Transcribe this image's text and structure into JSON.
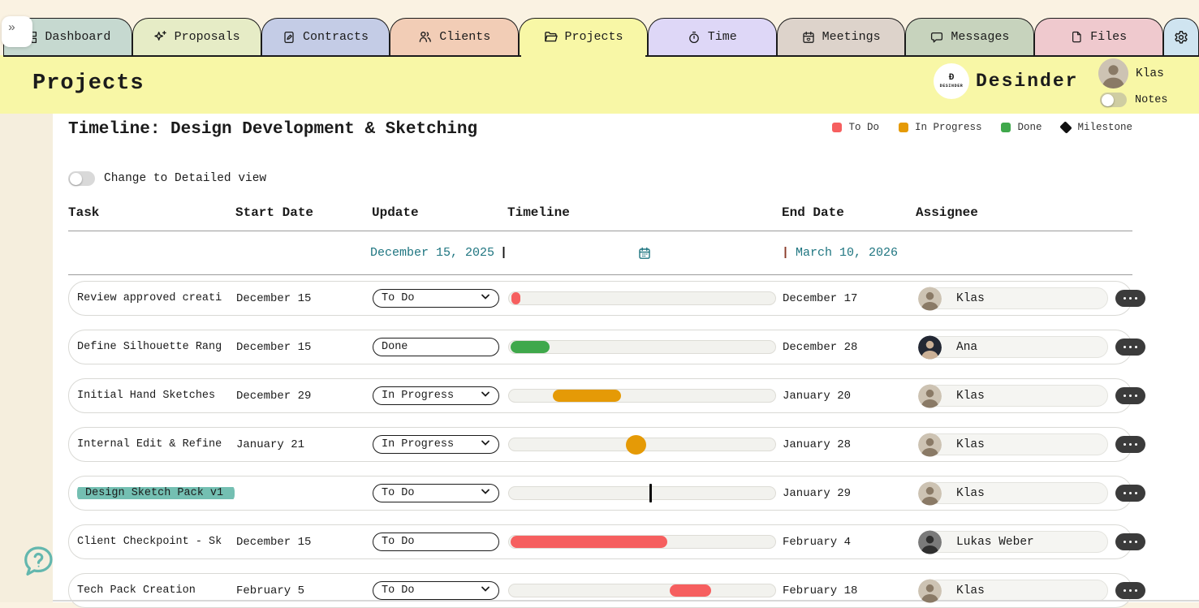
{
  "page": {
    "collapse_button": "»"
  },
  "tabs": [
    {
      "label": "Dashboard",
      "icon": "grid",
      "color": "#c6d9d0",
      "active": false
    },
    {
      "label": "Proposals",
      "icon": "sparkle",
      "color": "#e6ecc6",
      "active": false
    },
    {
      "label": "Contracts",
      "icon": "contract",
      "color": "#c4cce6",
      "active": false
    },
    {
      "label": "Clients",
      "icon": "people",
      "color": "#f2cdb6",
      "active": false
    },
    {
      "label": "Projects",
      "icon": "folder",
      "color": "#f8f7a6",
      "active": true
    },
    {
      "label": "Time",
      "icon": "timer",
      "color": "#ded7f7",
      "active": false
    },
    {
      "label": "Meetings",
      "icon": "calendar",
      "color": "#ddd3cb",
      "active": false
    },
    {
      "label": "Messages",
      "icon": "chat",
      "color": "#c7d3bd",
      "active": false
    },
    {
      "label": "Files",
      "icon": "file",
      "color": "#efc9ce",
      "active": false
    }
  ],
  "settings_tab": {
    "icon": "gear",
    "color": "#cfe4f0"
  },
  "header": {
    "title": "Projects",
    "brand": "Desinder",
    "logo_mark": "Ð",
    "logo_text": "DESINDER",
    "user": "Klas",
    "avatar": {
      "bg": "#cdc3b3",
      "fg": "#8a7a66"
    },
    "notes_toggle_label": "Notes",
    "notes_toggle_on": false
  },
  "timeline": {
    "title": "Timeline: Design Development & Sketching",
    "legend": [
      {
        "label": "To Do",
        "color": "#f65f5f",
        "shape": "square"
      },
      {
        "label": "In Progress",
        "color": "#e59a06",
        "shape": "square"
      },
      {
        "label": "Done",
        "color": "#3fa84b",
        "shape": "square"
      },
      {
        "label": "Milestone",
        "color": "#101010",
        "shape": "diamond"
      }
    ],
    "view_toggle": {
      "label": "Change to Detailed view",
      "on": false
    },
    "columns": [
      "Task",
      "Start Date",
      "Update",
      "Timeline",
      "End Date",
      "Assignee"
    ],
    "date_range": {
      "start": "December 15, 2025",
      "start_cursor": "|",
      "end_cursor": "|",
      "end": "March 10, 2026"
    },
    "rows": [
      {
        "task": "Review approved creati",
        "start": "December 15",
        "status": "To Do",
        "has_chevron": true,
        "highlight": false,
        "bar": {
          "kind": "bar",
          "color": "#f65f5f",
          "left_pct": 1,
          "width_pct": 3.2
        },
        "end": "December 17",
        "assignee": "Klas",
        "avatar": {
          "bg": "#cdc3b3",
          "fg": "#8a7a66"
        }
      },
      {
        "task": "Define Silhouette Rang",
        "start": "December 15",
        "status": "Done",
        "has_chevron": false,
        "highlight": false,
        "bar": {
          "kind": "bar",
          "color": "#3fa84b",
          "left_pct": 0.6,
          "width_pct": 14.5
        },
        "end": "December 28",
        "assignee": "Ana",
        "avatar": {
          "bg": "#232834",
          "fg": "#cbb096"
        }
      },
      {
        "task": "Initial Hand Sketches",
        "start": "December 29",
        "status": "In Progress",
        "has_chevron": true,
        "highlight": false,
        "bar": {
          "kind": "bar",
          "color": "#e59a06",
          "left_pct": 16.5,
          "width_pct": 25.5
        },
        "end": "January 20",
        "assignee": "Klas",
        "avatar": {
          "bg": "#cdc3b3",
          "fg": "#8a7a66"
        }
      },
      {
        "task": "Internal Edit & Refine",
        "start": "January 21",
        "status": "In Progress",
        "has_chevron": true,
        "highlight": false,
        "bar": {
          "kind": "dot",
          "color": "#e59a06",
          "left_pct": 44,
          "width_pct": 0
        },
        "end": "January 28",
        "assignee": "Klas",
        "avatar": {
          "bg": "#cdc3b3",
          "fg": "#8a7a66"
        }
      },
      {
        "task": "Design Sketch Pack v1",
        "start": "",
        "status": "To Do",
        "has_chevron": true,
        "highlight": true,
        "bar": {
          "kind": "marker",
          "color": "#0c0c0c",
          "left_pct": 52.8,
          "width_pct": 0
        },
        "end": "January 29",
        "assignee": "Klas",
        "avatar": {
          "bg": "#cdc3b3",
          "fg": "#8a7a66"
        }
      },
      {
        "task": "Client Checkpoint - Sk",
        "start": "December 15",
        "status": "To Do",
        "has_chevron": false,
        "highlight": false,
        "bar": {
          "kind": "bar",
          "color": "#f65f5f",
          "left_pct": 0.5,
          "width_pct": 59
        },
        "end": "February 4",
        "assignee": "Lukas Weber",
        "avatar": {
          "bg": "#7a7a7a",
          "fg": "#2f2f2f"
        }
      },
      {
        "task": "Tech Pack Creation",
        "start": "February 5",
        "status": "To Do",
        "has_chevron": true,
        "highlight": false,
        "bar": {
          "kind": "bar",
          "color": "#f65f5f",
          "left_pct": 60.5,
          "width_pct": 15.5
        },
        "end": "February 18",
        "assignee": "Klas",
        "avatar": {
          "bg": "#cdc3b3",
          "fg": "#8a7a66"
        }
      }
    ]
  }
}
